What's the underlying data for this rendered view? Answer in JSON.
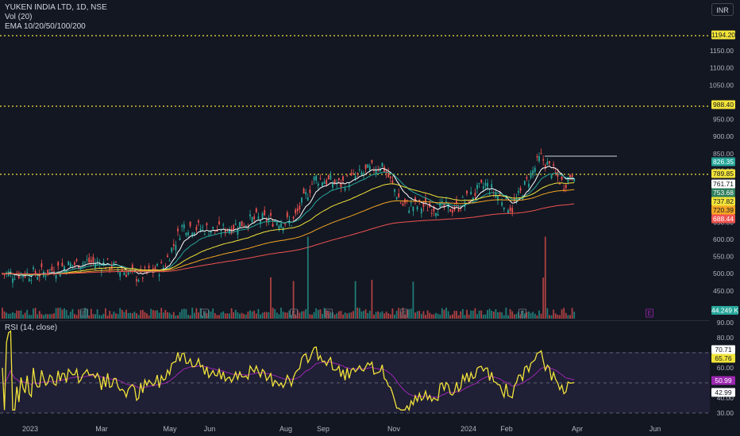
{
  "header": {
    "symbol_line": "YUKEN INDIA LTD, 1D, NSE",
    "volume_line": "Vol (20)",
    "ema_line": "EMA 10/20/50/100/200",
    "currency": "INR"
  },
  "rsi": {
    "title": "RSI (14, close)",
    "ticks": [
      "90.00",
      "80.00",
      "60.00",
      "40.00",
      "30.00"
    ],
    "labels": [
      {
        "text": "70.71",
        "color": "#ffffff"
      },
      {
        "text": "65.76",
        "color": "#f2e33a"
      },
      {
        "text": "50.99",
        "color": "#9c27b0"
      },
      {
        "text": "42.99",
        "color": "#ffffff"
      }
    ],
    "band_color": "#7e57c2"
  },
  "chart_data": {
    "type": "candlestick",
    "xlabel": "",
    "ylabel": "",
    "ylim": [
      400,
      1240
    ],
    "x_ticks": [
      "2023",
      "Mar",
      "May",
      "Jun",
      "Aug",
      "Sep",
      "Nov",
      "2024",
      "Feb",
      "Apr",
      "Jun"
    ],
    "y_ticks": [
      "1150.00",
      "1100.00",
      "1050.00",
      "950.00",
      "900.00",
      "850.00",
      "800.00",
      "650.00",
      "600.00",
      "550.00",
      "500.00",
      "450.00"
    ],
    "horizontal_levels": [
      1194.2,
      988.4,
      789.85
    ],
    "price_labels": [
      {
        "text": "1194.20",
        "bg": "#f2e33a",
        "fg": "#131722"
      },
      {
        "text": "988.40",
        "bg": "#f2e33a",
        "fg": "#131722"
      },
      {
        "text": "826.35",
        "bg": "#26a69a",
        "fg": "#ffffff"
      },
      {
        "text": "789.85",
        "bg": "#f2e33a",
        "fg": "#131722"
      },
      {
        "text": "761.71",
        "bg": "#ffffff",
        "fg": "#131722"
      },
      {
        "text": "753.68",
        "bg": "#2e7d5b",
        "fg": "#ffffff"
      },
      {
        "text": "737.82",
        "bg": "#f2e33a",
        "fg": "#131722"
      },
      {
        "text": "720.39",
        "bg": "#f5a623",
        "fg": "#131722"
      },
      {
        "text": "688.44",
        "bg": "#ef5350",
        "fg": "#ffffff"
      }
    ],
    "volume_label": "44.249 K",
    "event_markers": [
      "E",
      "E",
      "E",
      "D",
      "E",
      "E",
      "E"
    ],
    "series_colors": {
      "up": "#26a69a",
      "down": "#ef5350",
      "ema10": "#ffffff",
      "ema20": "#26a69a",
      "ema50": "#f2e33a",
      "ema100": "#f5a623",
      "ema200": "#ef5350",
      "rsi": "#f2e33a",
      "rsi_ma": "#9c27b0"
    },
    "close_path": [
      [
        "2023-01-01",
        500
      ],
      [
        "2023-01-20",
        520
      ],
      [
        "2023-02-10",
        535
      ],
      [
        "2023-03-01",
        525
      ],
      [
        "2023-03-25",
        490
      ],
      [
        "2023-04-15",
        520
      ],
      [
        "2023-05-01",
        640
      ],
      [
        "2023-06-01",
        625
      ],
      [
        "2023-07-01",
        660
      ],
      [
        "2023-08-01",
        650
      ],
      [
        "2023-08-20",
        780
      ],
      [
        "2023-09-10",
        760
      ],
      [
        "2023-10-15",
        820
      ],
      [
        "2023-11-01",
        700
      ],
      [
        "2023-12-15",
        690
      ],
      [
        "2024-01-10",
        760
      ],
      [
        "2024-02-01",
        690
      ],
      [
        "2024-02-25",
        840
      ],
      [
        "2024-03-15",
        760
      ],
      [
        "2024-03-31",
        826.35
      ]
    ]
  }
}
